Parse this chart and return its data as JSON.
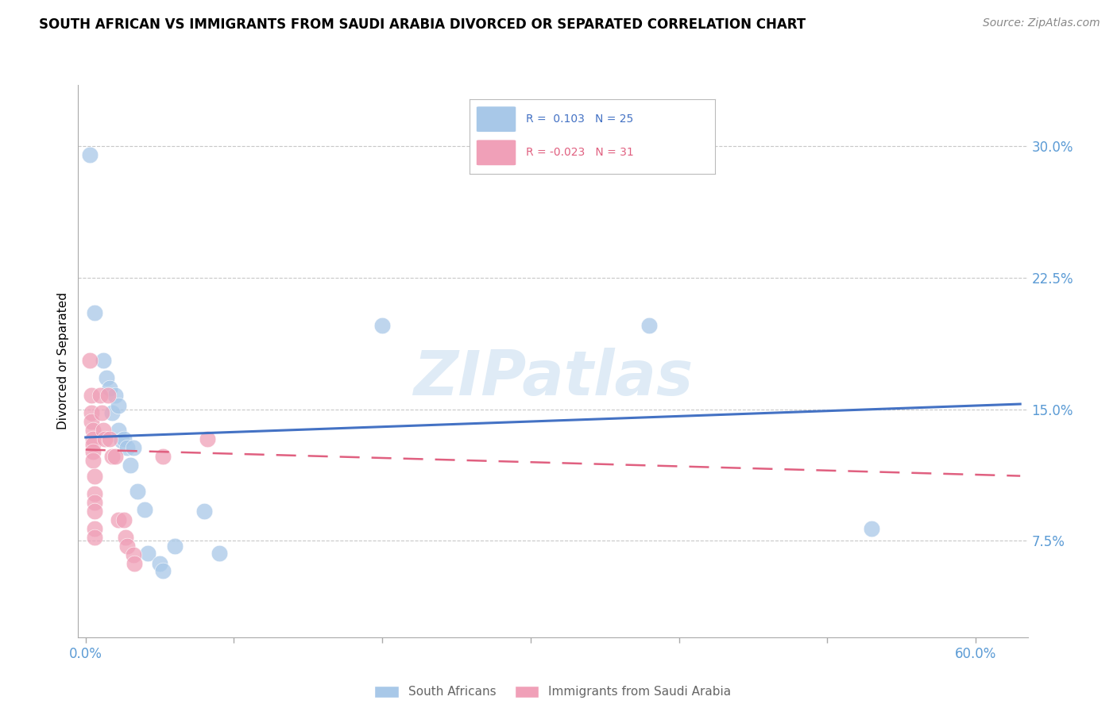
{
  "title": "SOUTH AFRICAN VS IMMIGRANTS FROM SAUDI ARABIA DIVORCED OR SEPARATED CORRELATION CHART",
  "source": "Source: ZipAtlas.com",
  "xlabel_ticks": [
    "0.0%",
    "",
    "",
    "",
    "",
    "",
    "60.0%"
  ],
  "xlabel_vals": [
    0.0,
    0.1,
    0.2,
    0.3,
    0.4,
    0.5,
    0.6
  ],
  "ylabel": "Divorced or Separated",
  "ylabel_ticks": [
    "7.5%",
    "15.0%",
    "22.5%",
    "30.0%"
  ],
  "ylabel_vals": [
    0.075,
    0.15,
    0.225,
    0.3
  ],
  "ylim": [
    0.02,
    0.335
  ],
  "xlim": [
    -0.005,
    0.635
  ],
  "blue_color": "#A8C8E8",
  "pink_color": "#F0A0B8",
  "trendline_blue": "#4472C4",
  "trendline_pink": "#E06080",
  "blue_scatter": [
    [
      0.003,
      0.295
    ],
    [
      0.006,
      0.205
    ],
    [
      0.012,
      0.178
    ],
    [
      0.014,
      0.168
    ],
    [
      0.016,
      0.162
    ],
    [
      0.018,
      0.148
    ],
    [
      0.02,
      0.158
    ],
    [
      0.022,
      0.152
    ],
    [
      0.022,
      0.138
    ],
    [
      0.024,
      0.132
    ],
    [
      0.026,
      0.133
    ],
    [
      0.028,
      0.128
    ],
    [
      0.03,
      0.118
    ],
    [
      0.032,
      0.128
    ],
    [
      0.035,
      0.103
    ],
    [
      0.04,
      0.093
    ],
    [
      0.042,
      0.068
    ],
    [
      0.05,
      0.062
    ],
    [
      0.052,
      0.058
    ],
    [
      0.06,
      0.072
    ],
    [
      0.08,
      0.092
    ],
    [
      0.09,
      0.068
    ],
    [
      0.2,
      0.198
    ],
    [
      0.38,
      0.198
    ],
    [
      0.53,
      0.082
    ]
  ],
  "pink_scatter": [
    [
      0.003,
      0.178
    ],
    [
      0.004,
      0.158
    ],
    [
      0.004,
      0.148
    ],
    [
      0.004,
      0.143
    ],
    [
      0.005,
      0.138
    ],
    [
      0.005,
      0.133
    ],
    [
      0.005,
      0.13
    ],
    [
      0.005,
      0.126
    ],
    [
      0.005,
      0.121
    ],
    [
      0.006,
      0.112
    ],
    [
      0.006,
      0.102
    ],
    [
      0.006,
      0.097
    ],
    [
      0.006,
      0.092
    ],
    [
      0.006,
      0.082
    ],
    [
      0.006,
      0.077
    ],
    [
      0.01,
      0.158
    ],
    [
      0.011,
      0.148
    ],
    [
      0.012,
      0.138
    ],
    [
      0.013,
      0.133
    ],
    [
      0.015,
      0.158
    ],
    [
      0.016,
      0.133
    ],
    [
      0.018,
      0.123
    ],
    [
      0.02,
      0.123
    ],
    [
      0.022,
      0.087
    ],
    [
      0.026,
      0.087
    ],
    [
      0.027,
      0.077
    ],
    [
      0.028,
      0.072
    ],
    [
      0.032,
      0.067
    ],
    [
      0.033,
      0.062
    ],
    [
      0.052,
      0.123
    ],
    [
      0.082,
      0.133
    ]
  ],
  "blue_trend_x": [
    0.0,
    0.63
  ],
  "blue_trend_y": [
    0.134,
    0.153
  ],
  "pink_trend_x": [
    0.0,
    0.63
  ],
  "pink_trend_y": [
    0.127,
    0.112
  ],
  "watermark": "ZIPatlas",
  "background_color": "#FFFFFF",
  "grid_color": "#C8C8C8",
  "tick_color": "#5B9BD5",
  "title_fontsize": 12,
  "source_fontsize": 10,
  "label_fontsize": 11,
  "tick_fontsize": 12
}
